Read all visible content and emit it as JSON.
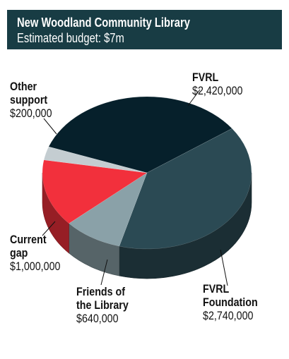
{
  "header": {
    "title": "New Woodland Community Library",
    "subtitle": "Estimated budget: $7m"
  },
  "colors": {
    "header_bg": "#183c44",
    "fvrl": "#06202b",
    "fvrl_foundation": "#2b4a54",
    "friends": "#8aa1a8",
    "current_gap": "#f2303c",
    "other": "#c4cdd1"
  },
  "chart_data": {
    "type": "pie",
    "style": "3d",
    "title": "New Woodland Community Library",
    "subtitle": "Estimated budget: $7m",
    "slices": [
      {
        "name": "FVRL",
        "value": 2420000,
        "label": "$2,420,000",
        "color": "#06202b"
      },
      {
        "name": "FVRL Foundation",
        "value": 2740000,
        "label": "$2,740,000",
        "color": "#2b4a54"
      },
      {
        "name": "Friends of the Library",
        "value": 640000,
        "label": "$640,000",
        "color": "#8aa1a8"
      },
      {
        "name": "Current gap",
        "value": 1000000,
        "label": "$1,000,000",
        "color": "#f2303c"
      },
      {
        "name": "Other support",
        "value": 200000,
        "label": "$200,000",
        "color": "#c4cdd1"
      }
    ]
  },
  "labels": {
    "fvrl": {
      "name": "FVRL",
      "value": "$2,420,000"
    },
    "foundation": {
      "name_1": "FVRL",
      "name_2": "Foundation",
      "value": "$2,740,000"
    },
    "friends": {
      "name_1": "Friends of",
      "name_2": "the Library",
      "value": "$640,000"
    },
    "gap": {
      "name_1": "Current",
      "name_2": "gap",
      "value": "$1,000,000"
    },
    "other": {
      "name_1": "Other",
      "name_2": "support",
      "value": "$200,000"
    }
  }
}
